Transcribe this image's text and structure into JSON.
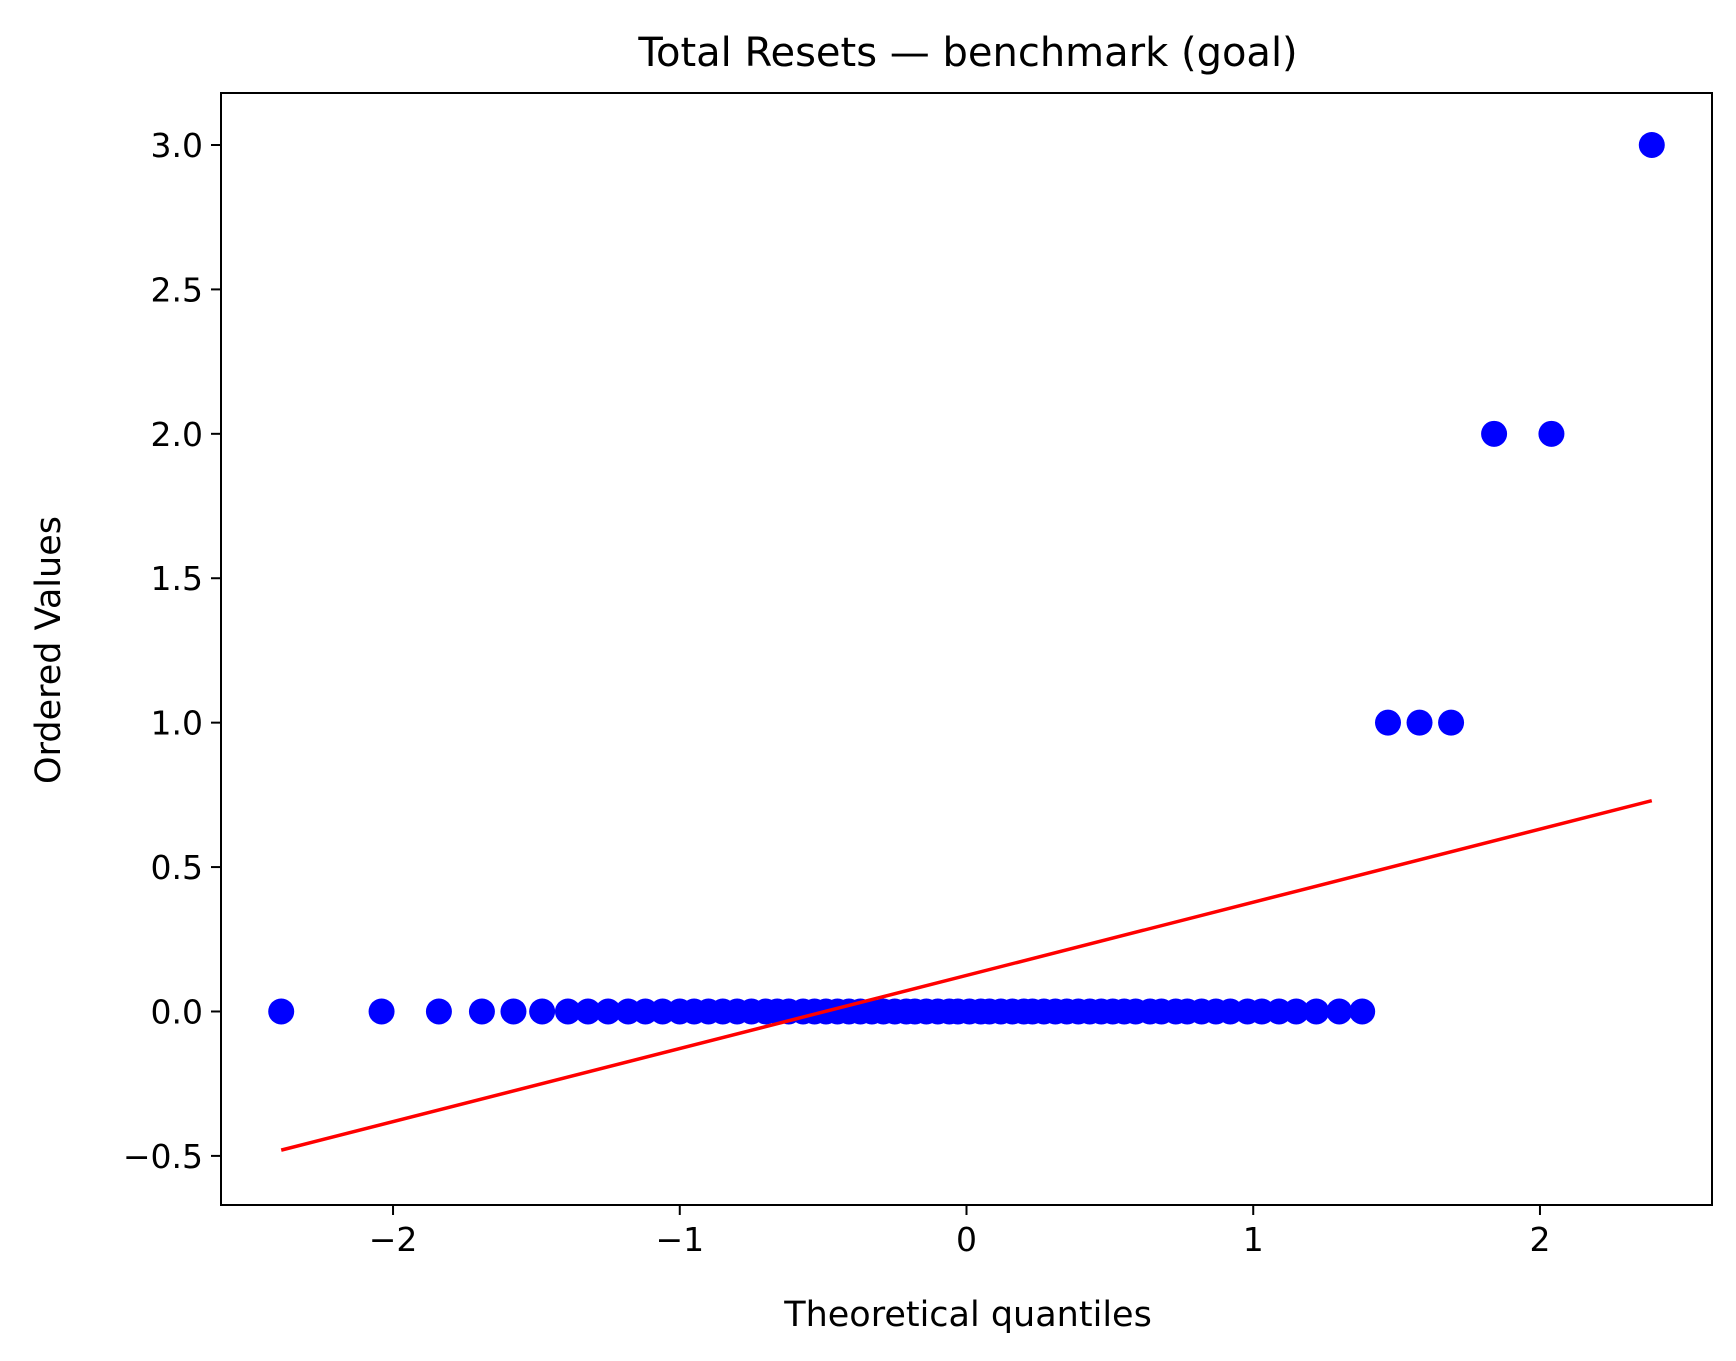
{
  "chart_data": {
    "type": "scatter",
    "title": "Total Resets — benchmark (goal)",
    "xlabel": "Theoretical quantiles",
    "ylabel": "Ordered Values",
    "xlim": [
      -2.6,
      2.6
    ],
    "ylim": [
      -0.67,
      3.18
    ],
    "xticks": [
      -2,
      -1,
      0,
      1,
      2
    ],
    "xtick_labels": [
      "−2",
      "−1",
      "0",
      "1",
      "2"
    ],
    "yticks": [
      -0.5,
      0.0,
      0.5,
      1.0,
      1.5,
      2.0,
      2.5,
      3.0
    ],
    "ytick_labels": [
      "−0.5",
      "0.0",
      "0.5",
      "1.0",
      "1.5",
      "2.0",
      "2.5",
      "3.0"
    ],
    "grid": false,
    "point_color": "#0000ff",
    "line_color": "#ff0000",
    "series": [
      {
        "kind": "points",
        "points": [
          [
            -2.39,
            0
          ],
          [
            -2.04,
            0
          ],
          [
            -1.84,
            0
          ],
          [
            -1.69,
            0
          ],
          [
            -1.58,
            0
          ],
          [
            -1.48,
            0
          ],
          [
            -1.39,
            0
          ],
          [
            -1.32,
            0
          ],
          [
            -1.25,
            0
          ],
          [
            -1.18,
            0
          ],
          [
            -1.12,
            0
          ],
          [
            -1.06,
            0
          ],
          [
            -1.0,
            0
          ],
          [
            -0.95,
            0
          ],
          [
            -0.9,
            0
          ],
          [
            -0.85,
            0
          ],
          [
            -0.8,
            0
          ],
          [
            -0.75,
            0
          ],
          [
            -0.7,
            0
          ],
          [
            -0.66,
            0
          ],
          [
            -0.62,
            0
          ],
          [
            -0.57,
            0
          ],
          [
            -0.53,
            0
          ],
          [
            -0.49,
            0
          ],
          [
            -0.45,
            0
          ],
          [
            -0.41,
            0
          ],
          [
            -0.37,
            0
          ],
          [
            -0.33,
            0
          ],
          [
            -0.29,
            0
          ],
          [
            -0.25,
            0
          ],
          [
            -0.21,
            0
          ],
          [
            -0.18,
            0
          ],
          [
            -0.14,
            0
          ],
          [
            -0.1,
            0
          ],
          [
            -0.06,
            0
          ],
          [
            -0.03,
            0
          ],
          [
            0.01,
            0
          ],
          [
            0.05,
            0
          ],
          [
            0.08,
            0
          ],
          [
            0.12,
            0
          ],
          [
            0.16,
            0
          ],
          [
            0.2,
            0
          ],
          [
            0.23,
            0
          ],
          [
            0.27,
            0
          ],
          [
            0.31,
            0
          ],
          [
            0.35,
            0
          ],
          [
            0.39,
            0
          ],
          [
            0.43,
            0
          ],
          [
            0.47,
            0
          ],
          [
            0.51,
            0
          ],
          [
            0.55,
            0
          ],
          [
            0.59,
            0
          ],
          [
            0.64,
            0
          ],
          [
            0.68,
            0
          ],
          [
            0.73,
            0
          ],
          [
            0.77,
            0
          ],
          [
            0.82,
            0
          ],
          [
            0.87,
            0
          ],
          [
            0.92,
            0
          ],
          [
            0.98,
            0
          ],
          [
            1.03,
            0
          ],
          [
            1.09,
            0
          ],
          [
            1.15,
            0
          ],
          [
            1.22,
            0
          ],
          [
            1.3,
            0
          ],
          [
            1.38,
            0
          ],
          [
            1.47,
            1
          ],
          [
            1.58,
            1
          ],
          [
            1.69,
            1
          ],
          [
            1.84,
            2
          ],
          [
            2.04,
            2
          ],
          [
            2.39,
            3
          ]
        ]
      },
      {
        "kind": "fit-line",
        "points": [
          [
            -2.39,
            -0.48
          ],
          [
            2.39,
            0.73
          ]
        ]
      }
    ]
  }
}
